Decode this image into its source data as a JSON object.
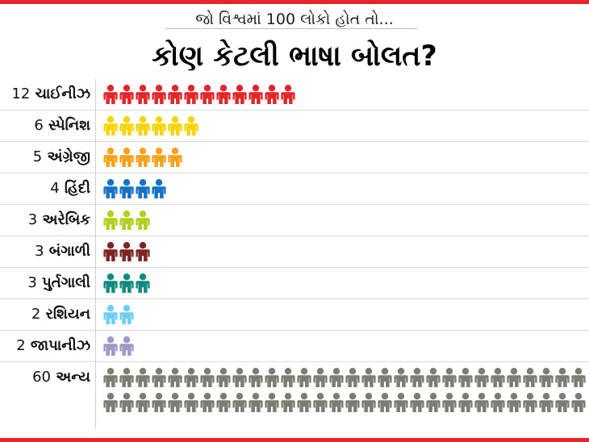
{
  "header": {
    "subtitle": "જો વિશ્વમાં 100 લોકો હોત તો...",
    "title": "કોણ કેટલી ભાષા બોલત?",
    "bar_color": "#e4252b"
  },
  "chart_data": {
    "type": "pictogram",
    "unit": "1 person icon = 1 person out of 100",
    "rows": [
      {
        "value": 12,
        "language": "ચાઈનીઝ",
        "color": "#e4252b"
      },
      {
        "value": 6,
        "language": "સ્પેનિશ",
        "color": "#f5d400"
      },
      {
        "value": 5,
        "language": "અંગ્રેજી",
        "color": "#f4a21b"
      },
      {
        "value": 4,
        "language": "હિંદી",
        "color": "#1573c1"
      },
      {
        "value": 3,
        "language": "અરેબિક",
        "color": "#b2cf23"
      },
      {
        "value": 3,
        "language": "બંગાળી",
        "color": "#7c2624"
      },
      {
        "value": 3,
        "language": "પુર્તગાલી",
        "color": "#138a80"
      },
      {
        "value": 2,
        "language": "રશિયન",
        "color": "#6ccff3"
      },
      {
        "value": 2,
        "language": "જાપાનીઝ",
        "color": "#9e98c9"
      },
      {
        "value": 60,
        "language": "અન્ય",
        "color": "#7c7c72"
      }
    ]
  }
}
